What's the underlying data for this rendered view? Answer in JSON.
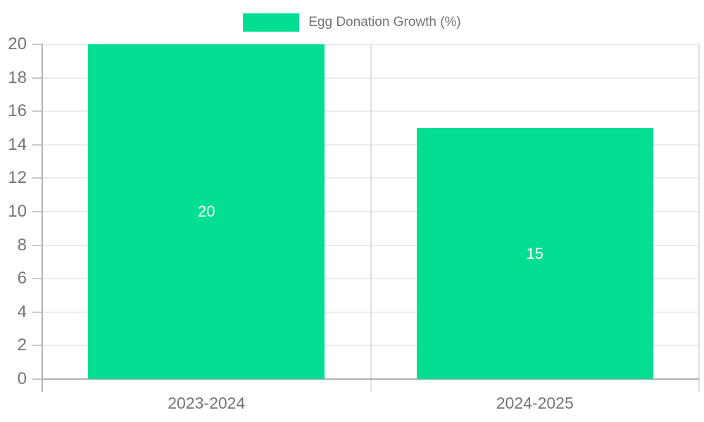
{
  "chart_data": {
    "type": "bar",
    "title": "Egg Donation Growth (%)",
    "categories": [
      "2023-2024",
      "2024-2025"
    ],
    "values": [
      20,
      15
    ],
    "series": [
      {
        "name": "Egg Donation Growth (%)",
        "values": [
          20,
          15
        ]
      }
    ],
    "xlabel": "",
    "ylabel": "",
    "ylim": [
      0,
      20
    ],
    "ytick_step": 2,
    "ytick_labels": [
      "0",
      "2",
      "4",
      "6",
      "8",
      "10",
      "12",
      "14",
      "16",
      "18",
      "20"
    ],
    "grid": true,
    "legend_position": "top",
    "bar_value_labels": [
      20,
      15
    ]
  },
  "legend": {
    "label": "Egg Donation Growth (%)"
  },
  "colors": {
    "bar": "#02DE92",
    "grid": "#ECECEC",
    "boundary": "#E0E0E0",
    "axis": "#B0B0B0",
    "tick_mark": "#C9C9C9",
    "text": "#757575",
    "value_label": "#FFFFFF",
    "background": "#FFFFFF"
  }
}
